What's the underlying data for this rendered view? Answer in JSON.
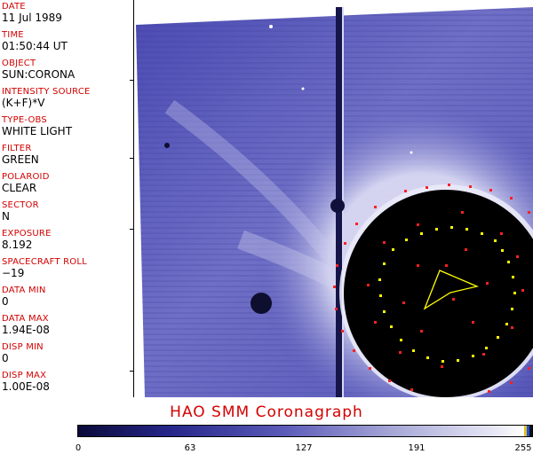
{
  "metadata": [
    {
      "label": "DATE",
      "value": "11 Jul 1989"
    },
    {
      "label": "TIME",
      "value": "01:50:44 UT"
    },
    {
      "label": "OBJECT",
      "value": "SUN:CORONA"
    },
    {
      "label": "INTENSITY SOURCE",
      "value": "(K+F)*V"
    },
    {
      "label": "TYPE-OBS",
      "value": "WHITE LIGHT"
    },
    {
      "label": "FILTER",
      "value": "GREEN"
    },
    {
      "label": "POLAROID",
      "value": "CLEAR"
    },
    {
      "label": "SECTOR",
      "value": "N"
    },
    {
      "label": "EXPOSURE",
      "value": "8.192"
    },
    {
      "label": "SPACECRAFT ROLL",
      "value": "−19"
    },
    {
      "label": "DATA MIN",
      "value": "0"
    },
    {
      "label": "DATA MAX",
      "value": "1.94E-08"
    },
    {
      "label": "DISP MIN",
      "value": "0"
    },
    {
      "label": "DISP MAX",
      "value": "1.00E-08"
    }
  ],
  "title": "HAO  SMM  Coronagraph",
  "colorbar": {
    "tick_labels": [
      "0",
      "63",
      "127",
      "191",
      "255"
    ],
    "min_color": "#0a0a3a",
    "max_color": "#ffffff"
  },
  "colors": {
    "label_red": "#d40000",
    "coronal_blue": "#5a5ab8",
    "occulter_black": "#000000",
    "marker_yellow": "#ffff00"
  }
}
